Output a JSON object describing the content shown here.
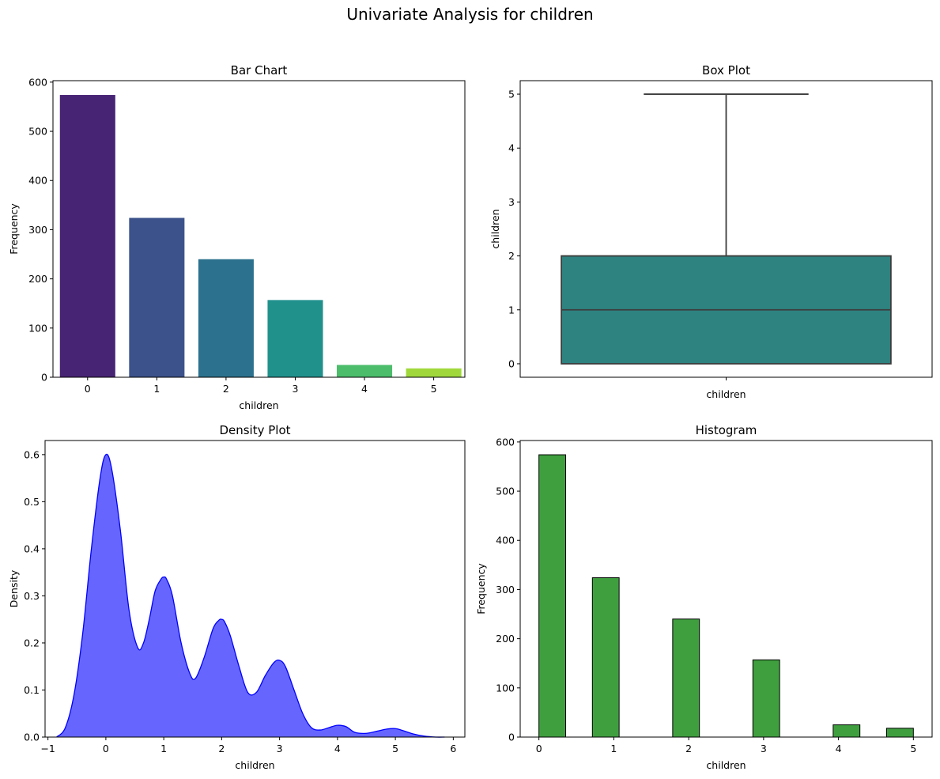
{
  "suptitle": "Univariate Analysis for children",
  "chart_data": [
    {
      "id": "bar",
      "type": "bar",
      "title": "Bar Chart",
      "xlabel": "children",
      "ylabel": "Frequency",
      "categories": [
        "0",
        "1",
        "2",
        "3",
        "4",
        "5"
      ],
      "values": [
        574,
        324,
        240,
        157,
        25,
        18
      ],
      "colors": [
        "#482475",
        "#3b528b",
        "#2c728e",
        "#21918c",
        "#4cbd6b",
        "#a0d83c"
      ],
      "ylim": [
        0,
        603
      ],
      "yticks": [
        0,
        100,
        200,
        300,
        400,
        500,
        600
      ],
      "grid": false,
      "legend": false
    },
    {
      "id": "box",
      "type": "box",
      "title": "Box Plot",
      "xlabel": "children",
      "ylabel": "children",
      "stats": {
        "min": 0,
        "q1": 0,
        "median": 1,
        "q3": 2,
        "max": 5
      },
      "color": "#2e8380",
      "ylim": [
        -0.25,
        5.25
      ],
      "yticks": [
        0,
        1,
        2,
        3,
        4,
        5
      ],
      "grid": false,
      "legend": false
    },
    {
      "id": "density",
      "type": "area",
      "title": "Density Plot",
      "xlabel": "children",
      "ylabel": "Density",
      "x": [
        -0.85,
        -0.7,
        -0.55,
        -0.4,
        -0.25,
        -0.1,
        0.0,
        0.1,
        0.25,
        0.4,
        0.55,
        0.65,
        0.75,
        0.85,
        0.95,
        1.0,
        1.05,
        1.15,
        1.3,
        1.45,
        1.55,
        1.7,
        1.85,
        1.95,
        2.0,
        2.05,
        2.15,
        2.3,
        2.45,
        2.6,
        2.75,
        2.9,
        3.0,
        3.1,
        3.25,
        3.4,
        3.55,
        3.7,
        3.85,
        4.0,
        4.15,
        4.3,
        4.5,
        4.7,
        4.85,
        5.0,
        5.15,
        5.3,
        5.5,
        5.7,
        5.85
      ],
      "values": [
        0.0,
        0.02,
        0.09,
        0.22,
        0.4,
        0.55,
        0.6,
        0.57,
        0.44,
        0.27,
        0.19,
        0.2,
        0.25,
        0.31,
        0.335,
        0.34,
        0.335,
        0.3,
        0.2,
        0.135,
        0.125,
        0.17,
        0.23,
        0.248,
        0.25,
        0.245,
        0.215,
        0.15,
        0.095,
        0.095,
        0.13,
        0.158,
        0.163,
        0.15,
        0.1,
        0.05,
        0.02,
        0.015,
        0.02,
        0.025,
        0.022,
        0.01,
        0.008,
        0.013,
        0.017,
        0.018,
        0.013,
        0.007,
        0.002,
        0.0,
        0.0
      ],
      "xlim": [
        -1.05,
        6.2
      ],
      "xticks": [
        -1,
        0,
        1,
        2,
        3,
        4,
        5,
        6
      ],
      "ylim": [
        0,
        0.63
      ],
      "yticks": [
        0.0,
        0.1,
        0.2,
        0.3,
        0.4,
        0.5,
        0.6
      ],
      "fill_color": "#6666ff",
      "line_color": "#0000ff",
      "grid": false,
      "legend": false
    },
    {
      "id": "hist",
      "type": "bar",
      "title": "Histogram",
      "xlabel": "children",
      "ylabel": "Frequency",
      "bins": [
        {
          "start": 0.0,
          "end": 0.357,
          "count": 574
        },
        {
          "start": 0.714,
          "end": 1.071,
          "count": 324
        },
        {
          "start": 1.786,
          "end": 2.143,
          "count": 240
        },
        {
          "start": 2.857,
          "end": 3.214,
          "count": 157
        },
        {
          "start": 3.929,
          "end": 4.286,
          "count": 25
        },
        {
          "start": 4.643,
          "end": 5.0,
          "count": 18
        }
      ],
      "xlim": [
        -0.25,
        5.25
      ],
      "xticks": [
        0,
        1,
        2,
        3,
        4,
        5
      ],
      "ylim": [
        0,
        603
      ],
      "yticks": [
        0,
        100,
        200,
        300,
        400,
        500,
        600
      ],
      "color": "#3f9f3f",
      "grid": false,
      "legend": false
    }
  ]
}
